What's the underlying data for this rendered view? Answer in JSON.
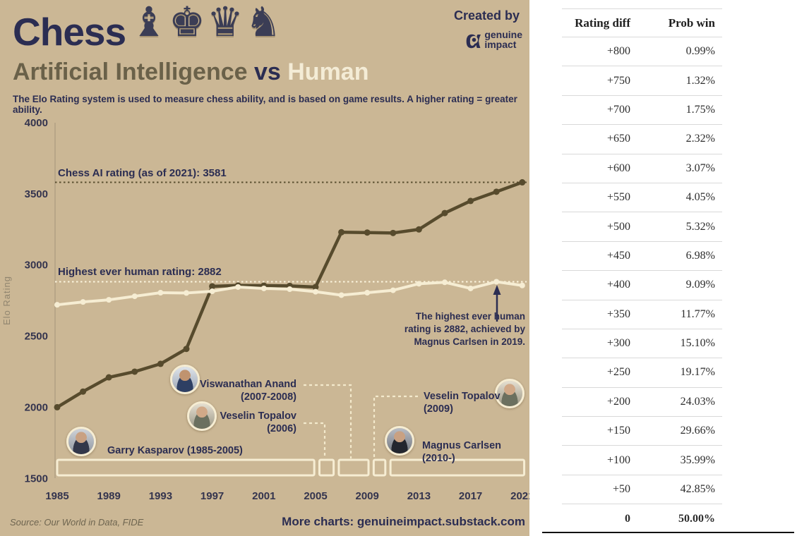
{
  "header": {
    "title": "Chess",
    "chess_pieces": "♝♚♛♞",
    "created_by": "Created by",
    "brand_line1": "genuine",
    "brand_line2": "impact",
    "subtitle_ai": "Artificial Intelligence",
    "subtitle_vs": " vs ",
    "subtitle_human": "Human",
    "tagline": "The Elo Rating system is used to measure chess ability, and is based on game results. A higher rating = greater ability."
  },
  "chart_data": {
    "type": "line",
    "title": "Artificial Intelligence vs Human",
    "xlabel": "",
    "ylabel": "Elo Rating",
    "ylim": [
      1500,
      4000
    ],
    "grid": false,
    "legend_position": "none",
    "x_ticks": [
      1985,
      1989,
      1993,
      1997,
      2001,
      2005,
      2009,
      2013,
      2017,
      2021
    ],
    "y_ticks": [
      4000,
      3500,
      3000,
      2500,
      2000,
      1500
    ],
    "x": [
      1985,
      1987,
      1989,
      1991,
      1993,
      1995,
      1997,
      1999,
      2001,
      2003,
      2005,
      2007,
      2009,
      2011,
      2013,
      2015,
      2017,
      2019,
      2021
    ],
    "series": [
      {
        "name": "Chess AI rating",
        "color": "#574b2d",
        "width": 4.5,
        "dot": 4.5,
        "values": [
          2000,
          2110,
          2210,
          2250,
          2305,
          2410,
          2850,
          2856,
          2855,
          2853,
          2845,
          3230,
          3228,
          3225,
          3250,
          3365,
          3450,
          3515,
          3581
        ]
      },
      {
        "name": "Highest rated human",
        "color": "#f6edd3",
        "width": 4,
        "dot": 4,
        "values": [
          2720,
          2740,
          2755,
          2780,
          2805,
          2803,
          2815,
          2845,
          2835,
          2830,
          2812,
          2788,
          2805,
          2822,
          2868,
          2878,
          2835,
          2882,
          2856
        ]
      }
    ],
    "annotations": {
      "ai_line": {
        "label": "Chess AI rating (as of 2021): 3581",
        "value": 3581
      },
      "human_line": {
        "label": "Highest ever human rating: 2882",
        "value": 2882
      }
    }
  },
  "note": {
    "line1": "The highest ever human",
    "line2_pre": "rating is ",
    "line2_bold": "2882",
    "line2_post": ", achieved by",
    "line3": "Magnus Carlsen in 2019."
  },
  "timeline": {
    "segments": [
      {
        "champion": "Garry Kasparov",
        "start": 1985,
        "end": 2004.9
      },
      {
        "champion": "Veselin Topalov",
        "start": 2005.3,
        "end": 2006.4
      },
      {
        "champion": "Viswanathan Anand",
        "start": 2006.8,
        "end": 2009.1
      },
      {
        "champion": "Veselin Topalov",
        "start": 2009.5,
        "end": 2010.4
      },
      {
        "champion": "Magnus Carlsen",
        "start": 2010.8,
        "end": 2021.15
      }
    ],
    "labels": {
      "kasparov": "Garry Kasparov (1985-2005)",
      "anand_name": "Viswanathan Anand",
      "anand_years": "(2007-2008)",
      "topalov06_name": "Veselin Topalov",
      "topalov06_years": "(2006)",
      "topalov09_name": "Veselin Topalov",
      "topalov09_years": "(2009)",
      "carlsen": "Magnus Carlsen (2010-)"
    }
  },
  "footer": {
    "source": "Source: Our World in Data, FIDE",
    "more": "More charts: genuineimpact.substack.com"
  },
  "table": {
    "headers": [
      "Rating diff",
      "Prob win"
    ],
    "rows": [
      [
        "+800",
        "0.99%"
      ],
      [
        "+750",
        "1.32%"
      ],
      [
        "+700",
        "1.75%"
      ],
      [
        "+650",
        "2.32%"
      ],
      [
        "+600",
        "3.07%"
      ],
      [
        "+550",
        "4.05%"
      ],
      [
        "+500",
        "5.32%"
      ],
      [
        "+450",
        "6.98%"
      ],
      [
        "+400",
        "9.09%"
      ],
      [
        "+350",
        "11.77%"
      ],
      [
        "+300",
        "15.10%"
      ],
      [
        "+250",
        "19.17%"
      ],
      [
        "+200",
        "24.03%"
      ],
      [
        "+150",
        "29.66%"
      ],
      [
        "+100",
        "35.99%"
      ],
      [
        "+50",
        "42.85%"
      ],
      [
        "0",
        "50.00%"
      ]
    ]
  },
  "colors": {
    "background_tan": "#cbb795",
    "navy": "#2b2d52",
    "ai_line": "#574b2d",
    "human_line": "#f6edd3",
    "olive_text": "#6a6149"
  }
}
